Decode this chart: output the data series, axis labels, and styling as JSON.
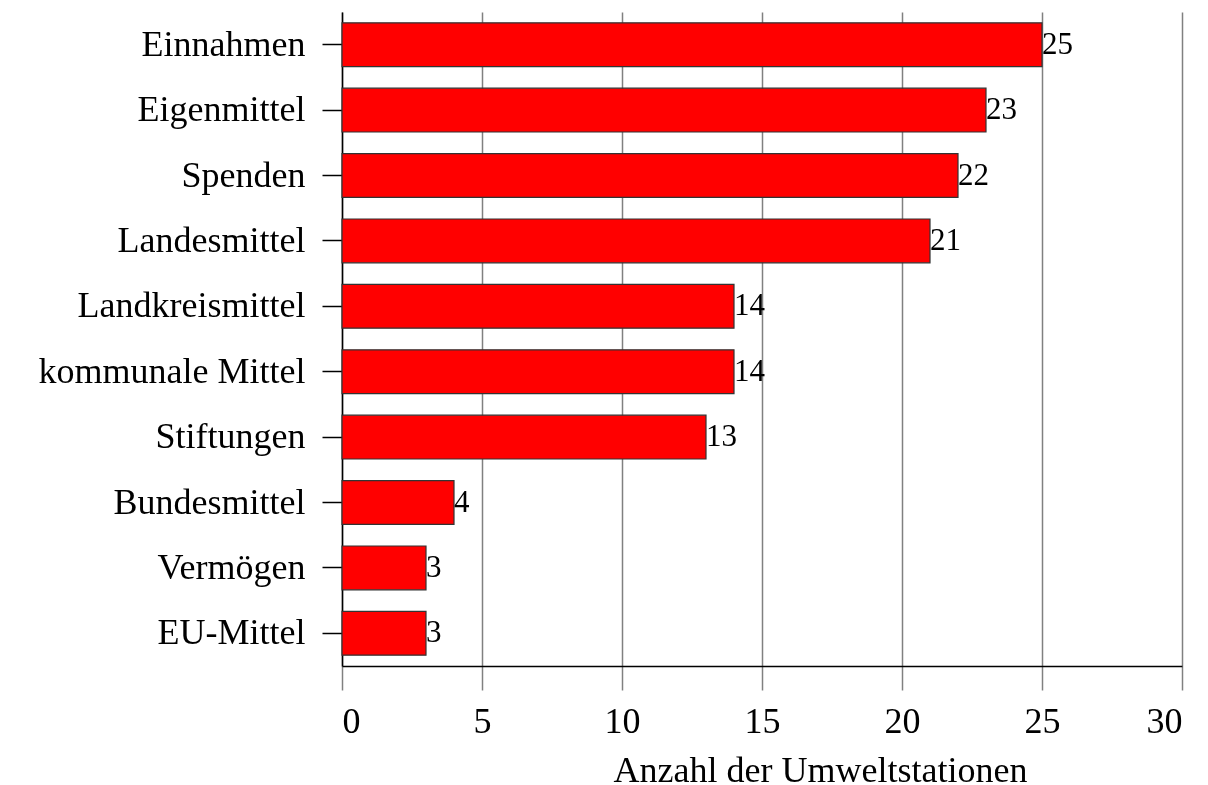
{
  "chart_data": {
    "type": "bar",
    "orientation": "horizontal",
    "xlabel": "Anzahl der Umweltstationen",
    "categories": [
      "Einnahmen",
      "Eigenmittel",
      "Spenden",
      "Landesmittel",
      "Landkreismittel",
      "kommunale Mittel",
      "Stiftungen",
      "Bundesmittel",
      "Vermögen",
      "EU-Mittel"
    ],
    "values": [
      25,
      23,
      22,
      21,
      14,
      14,
      13,
      4,
      3,
      3
    ],
    "color": "#ff0000",
    "xlim": [
      0,
      30
    ],
    "xticks": [
      0,
      5,
      10,
      15,
      20,
      25,
      30
    ],
    "grid": "x",
    "data_labels": true
  }
}
